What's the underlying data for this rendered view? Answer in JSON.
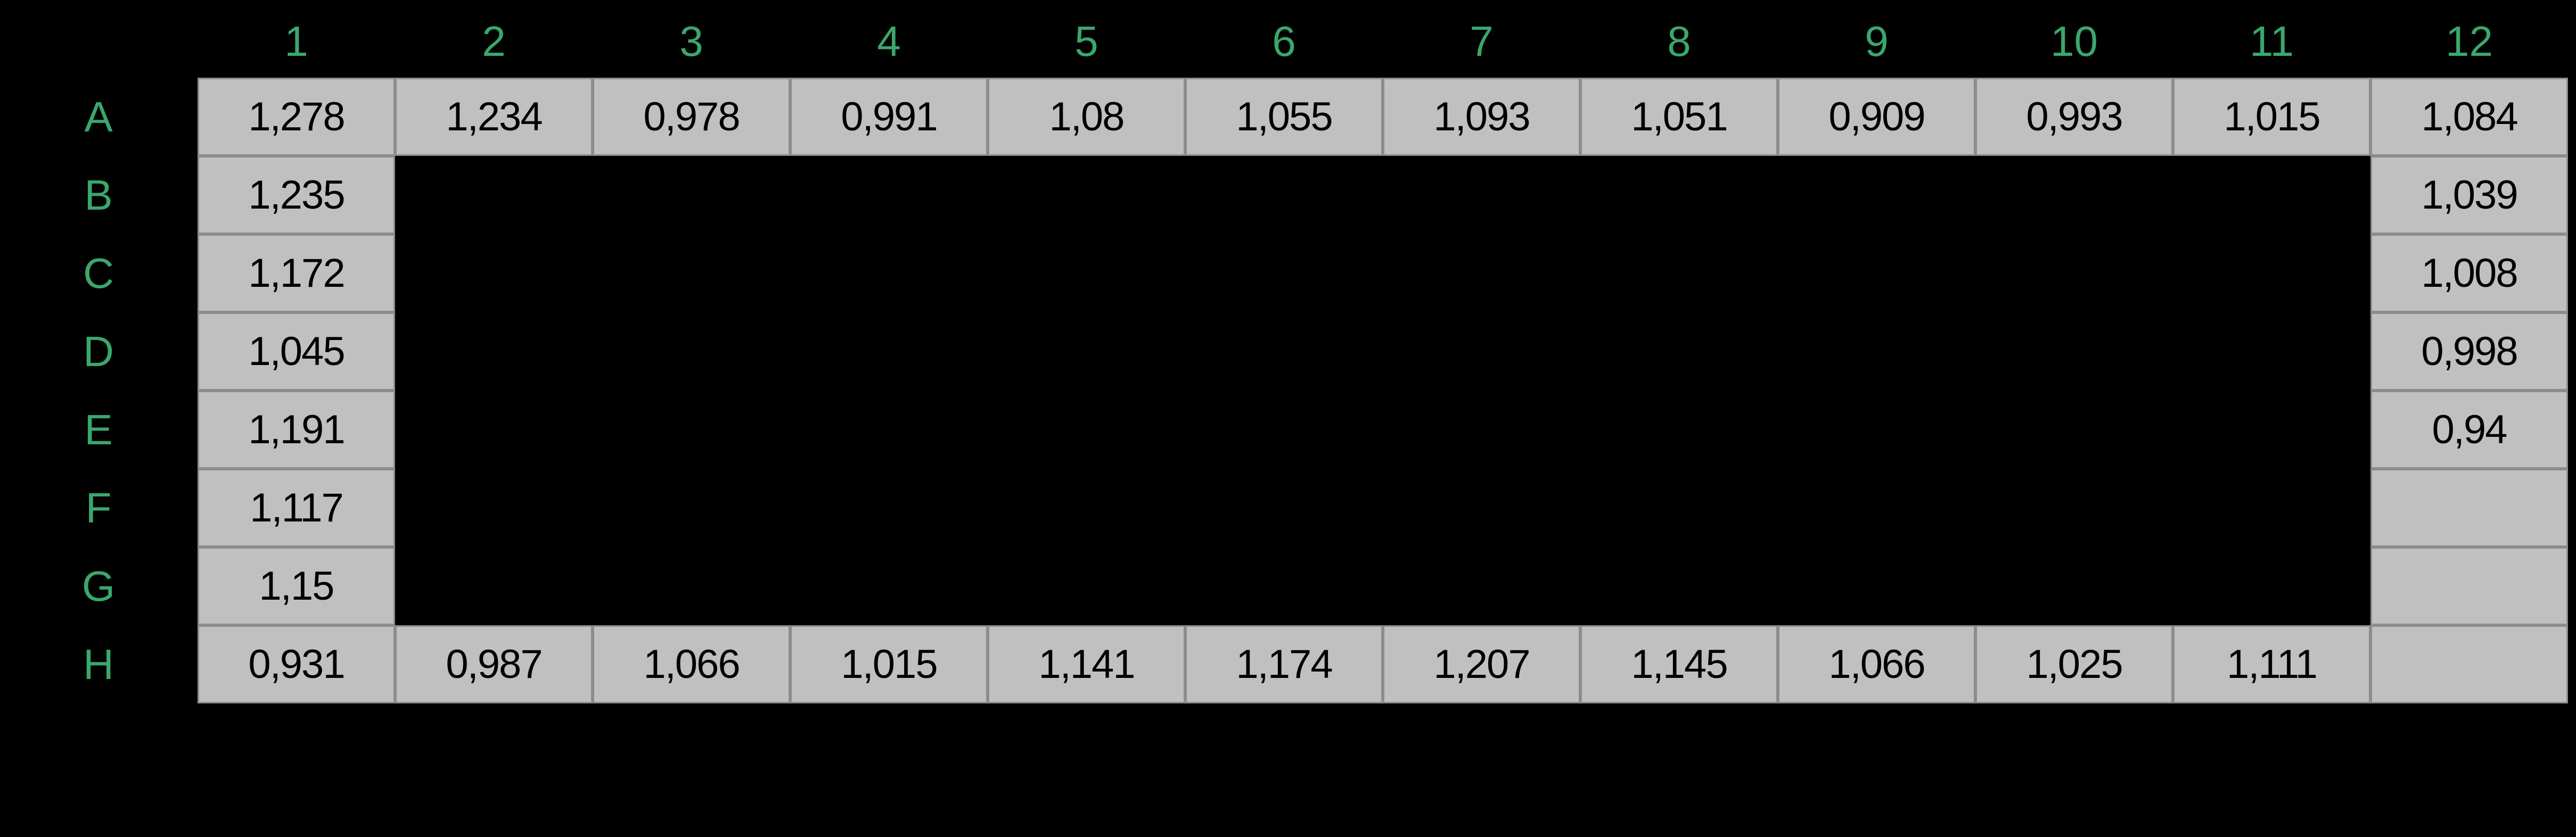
{
  "plate": {
    "columns": [
      "1",
      "2",
      "3",
      "4",
      "5",
      "6",
      "7",
      "8",
      "9",
      "10",
      "11",
      "12"
    ],
    "rows": [
      "A",
      "B",
      "C",
      "D",
      "E",
      "F",
      "G",
      "H"
    ],
    "wells": [
      {
        "row": "A",
        "col": "1",
        "value": "1,278"
      },
      {
        "row": "A",
        "col": "2",
        "value": "1,234"
      },
      {
        "row": "A",
        "col": "3",
        "value": "0,978"
      },
      {
        "row": "A",
        "col": "4",
        "value": "0,991"
      },
      {
        "row": "A",
        "col": "5",
        "value": "1,08"
      },
      {
        "row": "A",
        "col": "6",
        "value": "1,055"
      },
      {
        "row": "A",
        "col": "7",
        "value": "1,093"
      },
      {
        "row": "A",
        "col": "8",
        "value": "1,051"
      },
      {
        "row": "A",
        "col": "9",
        "value": "0,909"
      },
      {
        "row": "A",
        "col": "10",
        "value": "0,993"
      },
      {
        "row": "A",
        "col": "11",
        "value": "1,015"
      },
      {
        "row": "A",
        "col": "12",
        "value": "1,084"
      },
      {
        "row": "B",
        "col": "1",
        "value": "1,235"
      },
      {
        "row": "B",
        "col": "12",
        "value": "1,039"
      },
      {
        "row": "C",
        "col": "1",
        "value": "1,172"
      },
      {
        "row": "C",
        "col": "12",
        "value": "1,008"
      },
      {
        "row": "D",
        "col": "1",
        "value": "1,045"
      },
      {
        "row": "D",
        "col": "12",
        "value": "0,998"
      },
      {
        "row": "E",
        "col": "1",
        "value": "1,191"
      },
      {
        "row": "E",
        "col": "12",
        "value": "0,94"
      },
      {
        "row": "F",
        "col": "1",
        "value": "1,117"
      },
      {
        "row": "F",
        "col": "12",
        "value": ""
      },
      {
        "row": "G",
        "col": "1",
        "value": "1,15"
      },
      {
        "row": "G",
        "col": "12",
        "value": ""
      },
      {
        "row": "H",
        "col": "1",
        "value": "0,931"
      },
      {
        "row": "H",
        "col": "2",
        "value": "0,987"
      },
      {
        "row": "H",
        "col": "3",
        "value": "1,066"
      },
      {
        "row": "H",
        "col": "4",
        "value": "1,015"
      },
      {
        "row": "H",
        "col": "5",
        "value": "1,141"
      },
      {
        "row": "H",
        "col": "6",
        "value": "1,174"
      },
      {
        "row": "H",
        "col": "7",
        "value": "1,207"
      },
      {
        "row": "H",
        "col": "8",
        "value": "1,145"
      },
      {
        "row": "H",
        "col": "9",
        "value": "1,066"
      },
      {
        "row": "H",
        "col": "10",
        "value": "1,025"
      },
      {
        "row": "H",
        "col": "11",
        "value": "1,111"
      },
      {
        "row": "H",
        "col": "12",
        "value": ""
      }
    ]
  }
}
